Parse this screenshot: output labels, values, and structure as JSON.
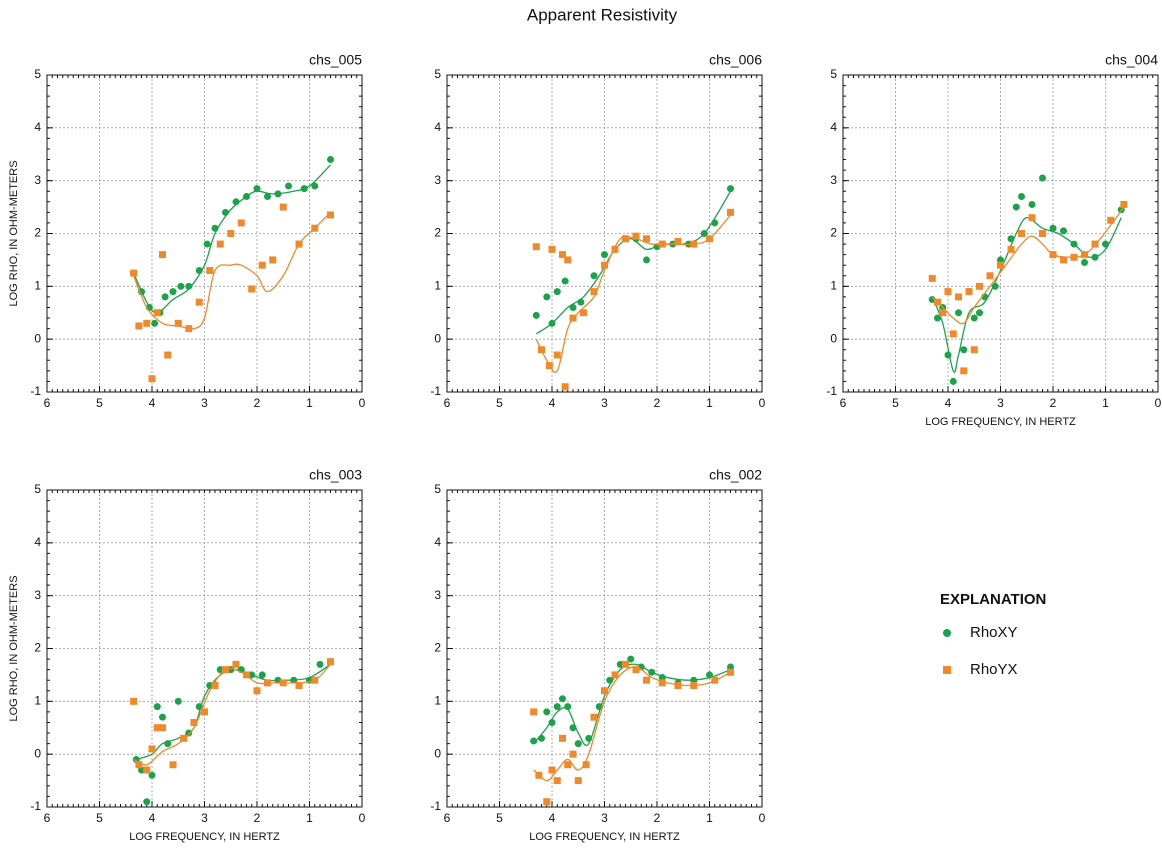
{
  "title": "Apparent Resistivity",
  "legend_title": "EXPLANATION",
  "chart_data": [
    {
      "type": "scatter",
      "title": "chs_005",
      "ylabel": "LOG RHO, IN OHM-METERS",
      "xlim": [
        6,
        0
      ],
      "ylim": [
        -1,
        5
      ],
      "xticks": [
        6,
        5,
        4,
        3,
        2,
        1,
        0
      ],
      "yticks": [
        -1,
        0,
        1,
        2,
        3,
        4,
        5
      ],
      "grid": true,
      "series": [
        {
          "name": "RhoXY",
          "color": "#1aa34a",
          "marker": "circle",
          "x": [
            4.35,
            4.2,
            4.05,
            3.95,
            3.85,
            3.75,
            3.6,
            3.45,
            3.3,
            3.1,
            2.95,
            2.8,
            2.6,
            2.4,
            2.2,
            2.0,
            1.8,
            1.6,
            1.4,
            1.1,
            0.9,
            0.6
          ],
          "values": [
            1.25,
            0.9,
            0.6,
            0.3,
            0.5,
            0.8,
            0.9,
            1.0,
            1.0,
            1.3,
            1.8,
            2.1,
            2.4,
            2.6,
            2.7,
            2.85,
            2.7,
            2.75,
            2.9,
            2.85,
            2.9,
            3.4
          ],
          "fit": {
            "x": [
              4.35,
              4.1,
              3.9,
              3.6,
              3.3,
              3.0,
              2.8,
              2.5,
              2.2,
              2.0,
              1.7,
              1.3,
              1.0,
              0.6
            ],
            "values": [
              1.25,
              0.7,
              0.5,
              0.75,
              0.95,
              1.4,
              2.0,
              2.45,
              2.7,
              2.8,
              2.75,
              2.8,
              2.9,
              3.3
            ]
          }
        },
        {
          "name": "RhoYX",
          "color": "#f0892a",
          "marker": "square",
          "x": [
            4.35,
            4.25,
            4.1,
            4.0,
            3.9,
            3.8,
            3.7,
            3.5,
            3.3,
            3.1,
            2.9,
            2.7,
            2.5,
            2.3,
            2.1,
            1.9,
            1.7,
            1.5,
            1.2,
            0.9,
            0.6
          ],
          "values": [
            1.25,
            0.25,
            0.3,
            -0.75,
            0.5,
            1.6,
            -0.3,
            0.3,
            0.2,
            0.7,
            1.3,
            1.8,
            2.0,
            2.2,
            0.95,
            1.4,
            1.5,
            2.5,
            1.8,
            2.1,
            2.35
          ],
          "fit": {
            "x": [
              4.35,
              4.1,
              3.8,
              3.5,
              3.2,
              3.0,
              2.8,
              2.5,
              2.3,
              2.0,
              1.8,
              1.5,
              1.2,
              0.9,
              0.6
            ],
            "values": [
              1.2,
              0.6,
              0.3,
              0.25,
              0.2,
              0.4,
              1.3,
              1.4,
              1.4,
              1.2,
              0.9,
              1.2,
              1.8,
              2.1,
              2.4
            ]
          }
        }
      ]
    },
    {
      "type": "scatter",
      "title": "chs_006",
      "xlim": [
        6,
        0
      ],
      "ylim": [
        -1,
        5
      ],
      "xticks": [
        6,
        5,
        4,
        3,
        2,
        1,
        0
      ],
      "yticks": [
        -1,
        0,
        1,
        2,
        3,
        4,
        5
      ],
      "grid": true,
      "series": [
        {
          "name": "RhoXY",
          "color": "#1aa34a",
          "marker": "circle",
          "x": [
            4.3,
            4.1,
            4.0,
            3.9,
            3.75,
            3.6,
            3.45,
            3.2,
            3.0,
            2.8,
            2.6,
            2.4,
            2.2,
            2.0,
            1.7,
            1.4,
            1.1,
            0.9,
            0.6
          ],
          "values": [
            0.45,
            0.8,
            0.3,
            0.9,
            1.1,
            0.6,
            0.7,
            1.2,
            1.6,
            1.7,
            1.9,
            1.9,
            1.5,
            1.75,
            1.8,
            1.8,
            2.0,
            2.2,
            2.85
          ],
          "fit": {
            "x": [
              4.3,
              4.0,
              3.7,
              3.4,
              3.1,
              2.8,
              2.5,
              2.2,
              1.9,
              1.5,
              1.1,
              0.6
            ],
            "values": [
              0.1,
              0.3,
              0.6,
              0.8,
              1.2,
              1.7,
              1.9,
              1.7,
              1.8,
              1.8,
              2.0,
              2.8
            ]
          }
        },
        {
          "name": "RhoYX",
          "color": "#f0892a",
          "marker": "square",
          "x": [
            4.3,
            4.0,
            3.8,
            3.7,
            4.2,
            4.05,
            3.9,
            3.75,
            3.6,
            3.4,
            3.2,
            3.0,
            2.8,
            2.6,
            2.4,
            2.2,
            1.9,
            1.6,
            1.3,
            1.0,
            0.6
          ],
          "values": [
            1.75,
            1.7,
            1.6,
            1.5,
            -0.2,
            -0.5,
            -0.3,
            -0.9,
            0.4,
            0.5,
            0.9,
            1.4,
            1.7,
            1.9,
            1.95,
            1.9,
            1.8,
            1.85,
            1.8,
            1.9,
            2.4
          ],
          "fit": {
            "x": [
              4.3,
              4.1,
              3.9,
              3.7,
              3.5,
              3.2,
              3.0,
              2.7,
              2.4,
              2.1,
              1.7,
              1.3,
              1.0,
              0.6
            ],
            "values": [
              0.0,
              -0.4,
              -0.6,
              0.2,
              0.5,
              0.8,
              1.3,
              1.9,
              1.9,
              1.8,
              1.8,
              1.8,
              1.9,
              2.35
            ]
          }
        }
      ]
    },
    {
      "type": "scatter",
      "title": "chs_004",
      "xlabel": "LOG FREQUENCY, IN HERTZ",
      "xlim": [
        6,
        0
      ],
      "ylim": [
        -1,
        5
      ],
      "xticks": [
        6,
        5,
        4,
        3,
        2,
        1,
        0
      ],
      "yticks": [
        -1,
        0,
        1,
        2,
        3,
        4,
        5
      ],
      "grid": true,
      "series": [
        {
          "name": "RhoXY",
          "color": "#1aa34a",
          "marker": "circle",
          "x": [
            4.3,
            4.2,
            4.1,
            4.0,
            3.9,
            3.8,
            3.7,
            3.6,
            3.5,
            3.4,
            3.3,
            3.1,
            3.0,
            2.8,
            2.7,
            2.6,
            2.4,
            2.2,
            2.0,
            1.8,
            1.6,
            1.4,
            1.2,
            1.0,
            0.7
          ],
          "values": [
            0.75,
            0.4,
            0.6,
            -0.3,
            -0.8,
            0.5,
            -0.2,
            0.9,
            0.4,
            0.5,
            0.8,
            1.0,
            1.5,
            1.9,
            2.5,
            2.7,
            2.55,
            3.05,
            2.1,
            2.05,
            1.8,
            1.45,
            1.55,
            1.8,
            2.45
          ],
          "fit": {
            "x": [
              4.3,
              4.1,
              3.9,
              3.8,
              3.6,
              3.3,
              3.0,
              2.7,
              2.5,
              2.2,
              1.9,
              1.6,
              1.3,
              1.0,
              0.7
            ],
            "values": [
              0.8,
              0.3,
              -0.6,
              -0.3,
              0.5,
              0.7,
              1.3,
              2.0,
              2.3,
              2.1,
              2.0,
              1.8,
              1.55,
              1.7,
              2.3
            ]
          }
        },
        {
          "name": "RhoYX",
          "color": "#f0892a",
          "marker": "square",
          "x": [
            4.3,
            4.2,
            4.1,
            4.0,
            3.9,
            3.8,
            3.7,
            3.6,
            3.5,
            3.4,
            3.2,
            3.0,
            2.8,
            2.6,
            2.4,
            2.2,
            2.0,
            1.8,
            1.6,
            1.4,
            1.2,
            0.9,
            0.65
          ],
          "values": [
            1.15,
            0.7,
            0.5,
            0.9,
            0.1,
            0.8,
            -0.6,
            0.9,
            -0.2,
            1.0,
            1.2,
            1.4,
            1.7,
            2.0,
            2.3,
            2.0,
            1.6,
            1.5,
            1.55,
            1.6,
            1.8,
            2.25,
            2.55
          ],
          "fit": {
            "x": [
              4.3,
              4.1,
              3.9,
              3.7,
              3.5,
              3.2,
              2.9,
              2.6,
              2.4,
              2.2,
              2.0,
              1.7,
              1.4,
              1.1,
              0.65
            ],
            "values": [
              0.8,
              0.6,
              0.4,
              0.3,
              0.6,
              1.0,
              1.4,
              1.8,
              1.95,
              1.8,
              1.6,
              1.55,
              1.6,
              1.9,
              2.5
            ]
          }
        }
      ]
    },
    {
      "type": "scatter",
      "title": "chs_003",
      "xlabel": "LOG FREQUENCY, IN HERTZ",
      "ylabel": "LOG RHO, IN OHM-METERS",
      "xlim": [
        6,
        0
      ],
      "ylim": [
        -1,
        5
      ],
      "xticks": [
        6,
        5,
        4,
        3,
        2,
        1,
        0
      ],
      "yticks": [
        -1,
        0,
        1,
        2,
        3,
        4,
        5
      ],
      "grid": true,
      "series": [
        {
          "name": "RhoXY",
          "color": "#1aa34a",
          "marker": "circle",
          "x": [
            4.3,
            4.2,
            4.1,
            4.0,
            3.9,
            3.8,
            3.7,
            3.5,
            3.3,
            3.1,
            2.9,
            2.7,
            2.5,
            2.3,
            2.1,
            1.9,
            1.6,
            1.3,
            1.0,
            0.8,
            0.6
          ],
          "values": [
            -0.1,
            -0.3,
            -0.9,
            -0.4,
            0.9,
            0.7,
            0.2,
            1.0,
            0.4,
            0.9,
            1.3,
            1.6,
            1.6,
            1.6,
            1.5,
            1.5,
            1.4,
            1.4,
            1.4,
            1.7,
            1.75
          ],
          "fit": {
            "x": [
              4.3,
              4.0,
              3.8,
              3.5,
              3.2,
              3.0,
              2.7,
              2.4,
              2.1,
              1.8,
              1.4,
              1.0,
              0.6
            ],
            "values": [
              -0.1,
              0.0,
              0.2,
              0.3,
              0.5,
              1.1,
              1.5,
              1.6,
              1.5,
              1.4,
              1.4,
              1.45,
              1.7
            ]
          }
        },
        {
          "name": "RhoYX",
          "color": "#f0892a",
          "marker": "square",
          "x": [
            4.35,
            4.25,
            4.1,
            4.0,
            3.9,
            3.8,
            3.6,
            3.4,
            3.2,
            3.0,
            2.8,
            2.6,
            2.4,
            2.2,
            2.0,
            1.8,
            1.5,
            1.2,
            0.9,
            0.6
          ],
          "values": [
            1.0,
            -0.2,
            -0.3,
            0.1,
            0.5,
            0.5,
            -0.2,
            0.3,
            0.6,
            0.8,
            1.3,
            1.6,
            1.7,
            1.5,
            1.2,
            1.35,
            1.35,
            1.3,
            1.4,
            1.75
          ],
          "fit": {
            "x": [
              4.35,
              4.1,
              3.8,
              3.5,
              3.2,
              2.9,
              2.6,
              2.3,
              2.0,
              1.7,
              1.3,
              0.9,
              0.6
            ],
            "values": [
              -0.1,
              -0.2,
              0.05,
              0.2,
              0.5,
              1.2,
              1.6,
              1.55,
              1.35,
              1.35,
              1.35,
              1.4,
              1.7
            ]
          }
        }
      ]
    },
    {
      "type": "scatter",
      "title": "chs_002",
      "xlabel": "LOG FREQUENCY, IN HERTZ",
      "xlim": [
        6,
        0
      ],
      "ylim": [
        -1,
        5
      ],
      "xticks": [
        6,
        5,
        4,
        3,
        2,
        1,
        0
      ],
      "yticks": [
        -1,
        0,
        1,
        2,
        3,
        4,
        5
      ],
      "grid": true,
      "series": [
        {
          "name": "RhoXY",
          "color": "#1aa34a",
          "marker": "circle",
          "x": [
            4.35,
            4.2,
            4.1,
            4.0,
            3.9,
            3.8,
            3.7,
            3.6,
            3.5,
            3.3,
            3.1,
            2.9,
            2.7,
            2.5,
            2.3,
            2.1,
            1.9,
            1.6,
            1.3,
            1.0,
            0.6
          ],
          "values": [
            0.25,
            0.3,
            0.8,
            0.6,
            0.9,
            1.05,
            0.9,
            0.5,
            0.2,
            0.3,
            0.9,
            1.4,
            1.7,
            1.8,
            1.65,
            1.55,
            1.45,
            1.35,
            1.4,
            1.5,
            1.65
          ],
          "fit": {
            "x": [
              4.35,
              4.1,
              3.9,
              3.7,
              3.5,
              3.3,
              3.0,
              2.7,
              2.4,
              2.1,
              1.8,
              1.4,
              1.0,
              0.6
            ],
            "values": [
              0.2,
              0.5,
              0.8,
              0.85,
              0.4,
              0.2,
              1.1,
              1.6,
              1.7,
              1.55,
              1.45,
              1.4,
              1.45,
              1.6
            ]
          }
        },
        {
          "name": "RhoYX",
          "color": "#f0892a",
          "marker": "square",
          "x": [
            4.35,
            4.25,
            4.1,
            4.0,
            3.9,
            3.8,
            3.7,
            3.6,
            3.5,
            3.35,
            3.2,
            3.0,
            2.8,
            2.6,
            2.4,
            2.2,
            1.9,
            1.6,
            1.3,
            0.9,
            0.6
          ],
          "values": [
            0.8,
            -0.4,
            -0.9,
            -0.3,
            -0.5,
            0.3,
            -0.2,
            0.0,
            -0.5,
            -0.2,
            0.7,
            1.2,
            1.5,
            1.7,
            1.6,
            1.4,
            1.35,
            1.3,
            1.3,
            1.4,
            1.55
          ],
          "fit": {
            "x": [
              4.35,
              4.1,
              3.9,
              3.7,
              3.5,
              3.3,
              3.0,
              2.7,
              2.4,
              2.1,
              1.8,
              1.4,
              1.0,
              0.6
            ],
            "values": [
              -0.3,
              -0.5,
              -0.3,
              -0.1,
              -0.3,
              0.0,
              1.0,
              1.5,
              1.65,
              1.45,
              1.35,
              1.3,
              1.35,
              1.55
            ]
          }
        }
      ]
    }
  ]
}
